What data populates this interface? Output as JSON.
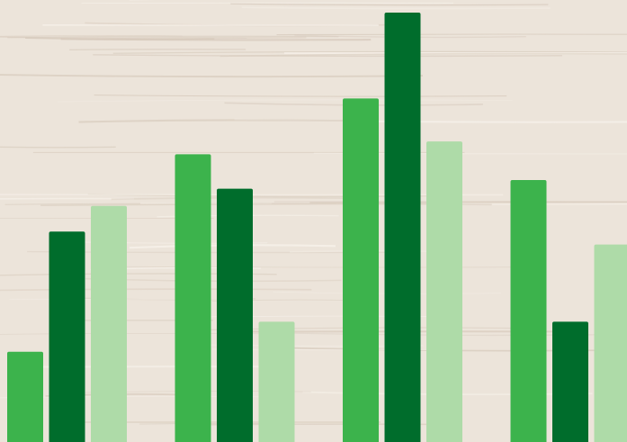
{
  "chart_data": {
    "type": "bar",
    "title": "",
    "xlabel": "",
    "ylabel": "",
    "ylim": [
      0,
      100
    ],
    "grid": false,
    "legend": "none",
    "categories": [
      "",
      "",
      "",
      ""
    ],
    "series": [
      {
        "color": "#3cb34c",
        "values": [
          21,
          67,
          80,
          61
        ]
      },
      {
        "color": "#006d2c",
        "values": [
          49,
          59,
          100,
          28
        ]
      },
      {
        "color": "#aedba8",
        "values": [
          55,
          28,
          70,
          46
        ]
      }
    ]
  },
  "colors": {
    "background": "#ece4da",
    "grain_dark": "#d6c9bb",
    "grain_light": "#f7f2eb"
  }
}
